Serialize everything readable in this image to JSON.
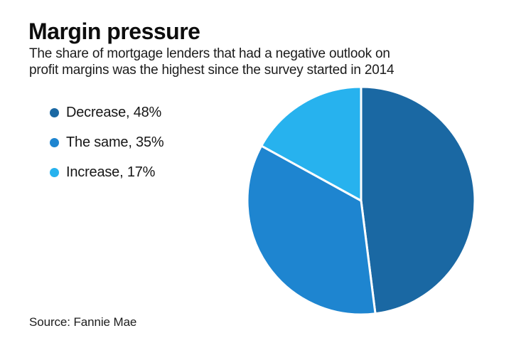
{
  "header": {
    "title": "Margin pressure",
    "subtitle_lines": [
      "The share of mortgage lenders that had a negative outlook on",
      "profit margins was the highest since the survey started in 2014"
    ]
  },
  "legend": {
    "items": [
      {
        "label": "Decrease, 48%",
        "color": "#1a68a3"
      },
      {
        "label": "The same, 35%",
        "color": "#1e85d0"
      },
      {
        "label": "Increase, 17%",
        "color": "#27b2ee"
      }
    ]
  },
  "source": {
    "text": "Source: Fannie Mae"
  },
  "chart_data": {
    "type": "pie",
    "title": "Margin pressure",
    "subtitle": "The share of mortgage lenders that had a negative outlook on profit margins was the highest since the survey started in 2014",
    "labels": [
      "Decrease",
      "The same",
      "Increase"
    ],
    "values": [
      48,
      35,
      17
    ],
    "unit": "%",
    "colors": [
      "#1a68a3",
      "#1e85d0",
      "#27b2ee"
    ],
    "start_angle_deg": 0,
    "direction": "clockwise",
    "slice_border_color": "#ffffff",
    "slice_border_width": 3,
    "legend_position": "left",
    "source": "Fannie Mae"
  }
}
